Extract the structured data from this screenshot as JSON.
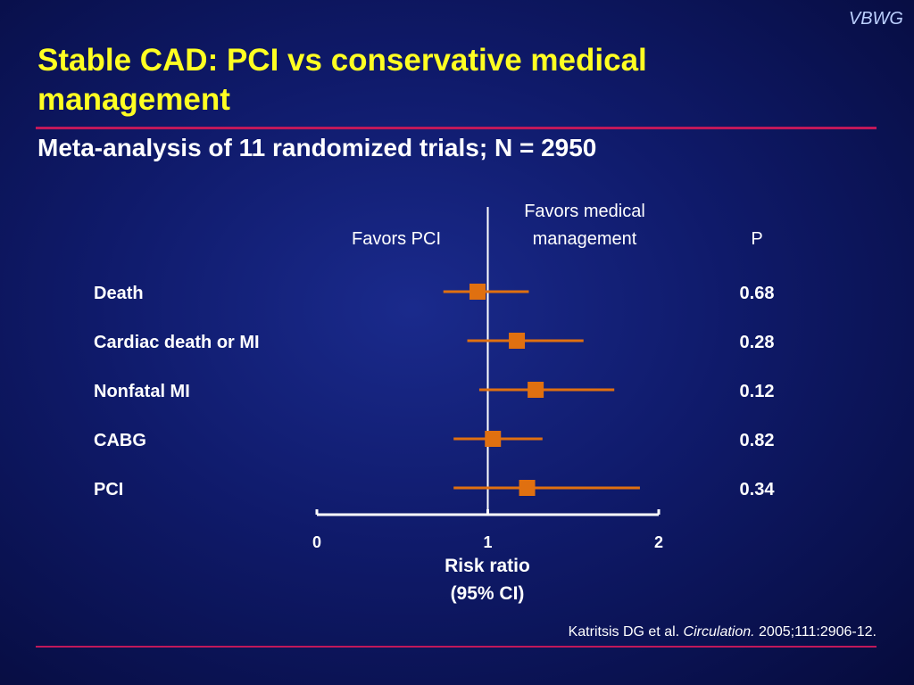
{
  "brand": "VBWG",
  "title": "Stable CAD: PCI vs conservative medical management",
  "subtitle": "Meta-analysis of 11 randomized trials; N = 2950",
  "citation": {
    "authors": "Katritsis DG et al.",
    "journal": "Circulation.",
    "details": "2005;111:2906-12."
  },
  "colors": {
    "title": "#ffff22",
    "rule": "#c0185a",
    "marker": "#e07010",
    "background": "#0f1a6a"
  },
  "chart_data": {
    "type": "forest",
    "header_left": "Favors PCI",
    "header_right_lines": [
      "Favors medical",
      "management"
    ],
    "p_header": "P",
    "xlabel_lines": [
      "Risk ratio",
      "(95% CI)"
    ],
    "xlim": [
      0,
      2
    ],
    "xticks": [
      "0",
      "1",
      "2"
    ],
    "reference_value": 1,
    "rows": [
      {
        "label": "Death",
        "rr": 0.94,
        "ci_low": 0.74,
        "ci_high": 1.24,
        "p": "0.68"
      },
      {
        "label": "Cardiac death or MI",
        "rr": 1.17,
        "ci_low": 0.88,
        "ci_high": 1.56,
        "p": "0.28"
      },
      {
        "label": "Nonfatal MI",
        "rr": 1.28,
        "ci_low": 0.95,
        "ci_high": 1.74,
        "p": "0.12"
      },
      {
        "label": "CABG",
        "rr": 1.03,
        "ci_low": 0.8,
        "ci_high": 1.32,
        "p": "0.82"
      },
      {
        "label": "PCI",
        "rr": 1.23,
        "ci_low": 0.8,
        "ci_high": 1.89,
        "p": "0.34"
      }
    ]
  }
}
